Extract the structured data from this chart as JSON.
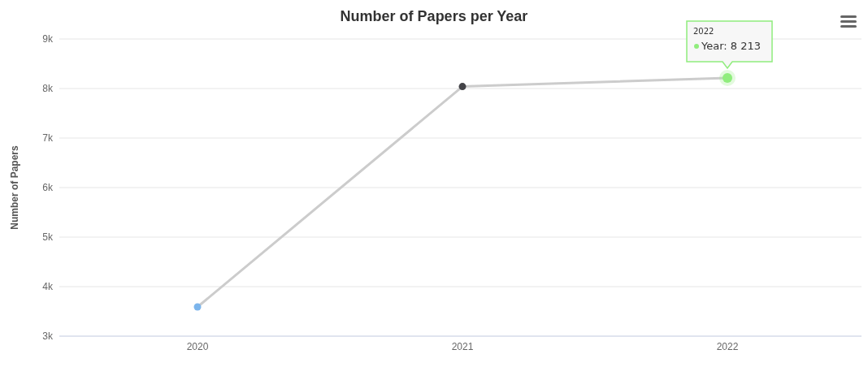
{
  "chart_data": {
    "type": "line",
    "title": "Number of Papers per Year",
    "ylabel": "Number of Papers",
    "categories": [
      "2020",
      "2021",
      "2022"
    ],
    "series": [
      {
        "color": "#cccccc",
        "values": [
          3590,
          8040,
          8213
        ],
        "colors": [
          "#7cb5ec",
          "#434348",
          "#90ed7d"
        ]
      }
    ],
    "ylim": [
      3000,
      9000
    ],
    "yticks": [
      {
        "value": 3000,
        "label": "3k"
      },
      {
        "value": 4000,
        "label": "4k"
      },
      {
        "value": 5000,
        "label": "5k"
      },
      {
        "value": 6000,
        "label": "6k"
      },
      {
        "value": 7000,
        "label": "7k"
      },
      {
        "value": 8000,
        "label": "8k"
      },
      {
        "value": 9000,
        "label": "9k"
      }
    ],
    "grid": "y",
    "marker": "circle",
    "legend": false,
    "annotations": [
      "2022",
      {
        "text": "Year: 8 213",
        "x": "2022",
        "y": 8213
      }
    ]
  }
}
